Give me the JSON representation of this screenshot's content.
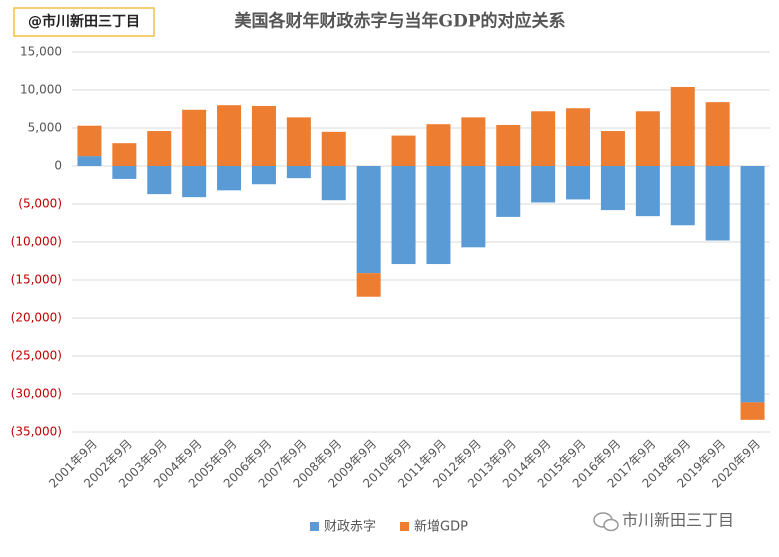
{
  "chart_data": {
    "type": "stacked_bar",
    "title": "美国各财年财政赤字与当年GDP的对应关系",
    "categories": [
      "2001年9月",
      "2002年9月",
      "2003年9月",
      "2004年9月",
      "2005年9月",
      "2006年9月",
      "2007年9月",
      "2008年9月",
      "2009年9月",
      "2010年9月",
      "2011年9月",
      "2012年9月",
      "2013年9月",
      "2014年9月",
      "2015年9月",
      "2016年9月",
      "2017年9月",
      "2018年9月",
      "2019年9月",
      "2020年9月"
    ],
    "series": [
      {
        "name": "财政赤字",
        "color": "#5b9bd5",
        "values": [
          1300,
          -1700,
          -3700,
          -4100,
          -3200,
          -2400,
          -1600,
          -4500,
          -14100,
          -12900,
          -12900,
          -10700,
          -6700,
          -4800,
          -4400,
          -5800,
          -6600,
          -7800,
          -9800,
          -31100
        ]
      },
      {
        "name": "新增GDP",
        "color": "#ed7d31",
        "values": [
          4000,
          3000,
          4600,
          7400,
          8000,
          7900,
          6400,
          4500,
          -3100,
          4000,
          5500,
          6400,
          5400,
          7200,
          7600,
          4600,
          7200,
          10400,
          8400,
          -2300
        ]
      }
    ],
    "ylim": [
      -35000,
      15000
    ],
    "yticks": [
      {
        "value": 15000,
        "label": "15,000"
      },
      {
        "value": 10000,
        "label": "10,000"
      },
      {
        "value": 5000,
        "label": "5,000"
      },
      0,
      {
        "value": -5000,
        "label": "(5,000)"
      },
      {
        "value": -10000,
        "label": "(10,000)"
      },
      {
        "value": -15000,
        "label": "(15,000)"
      },
      {
        "value": -20000,
        "label": "(20,000)"
      },
      {
        "value": -25000,
        "label": "(25,000)"
      },
      {
        "value": -30000,
        "label": "(30,000)"
      },
      {
        "value": -35000,
        "label": "(35,000)"
      }
    ],
    "negative_tick_color": "#c00000",
    "grid": true,
    "legend": "bottom"
  },
  "watermarks": [
    "@市川新田三丁目",
    "市川新田三丁目"
  ]
}
